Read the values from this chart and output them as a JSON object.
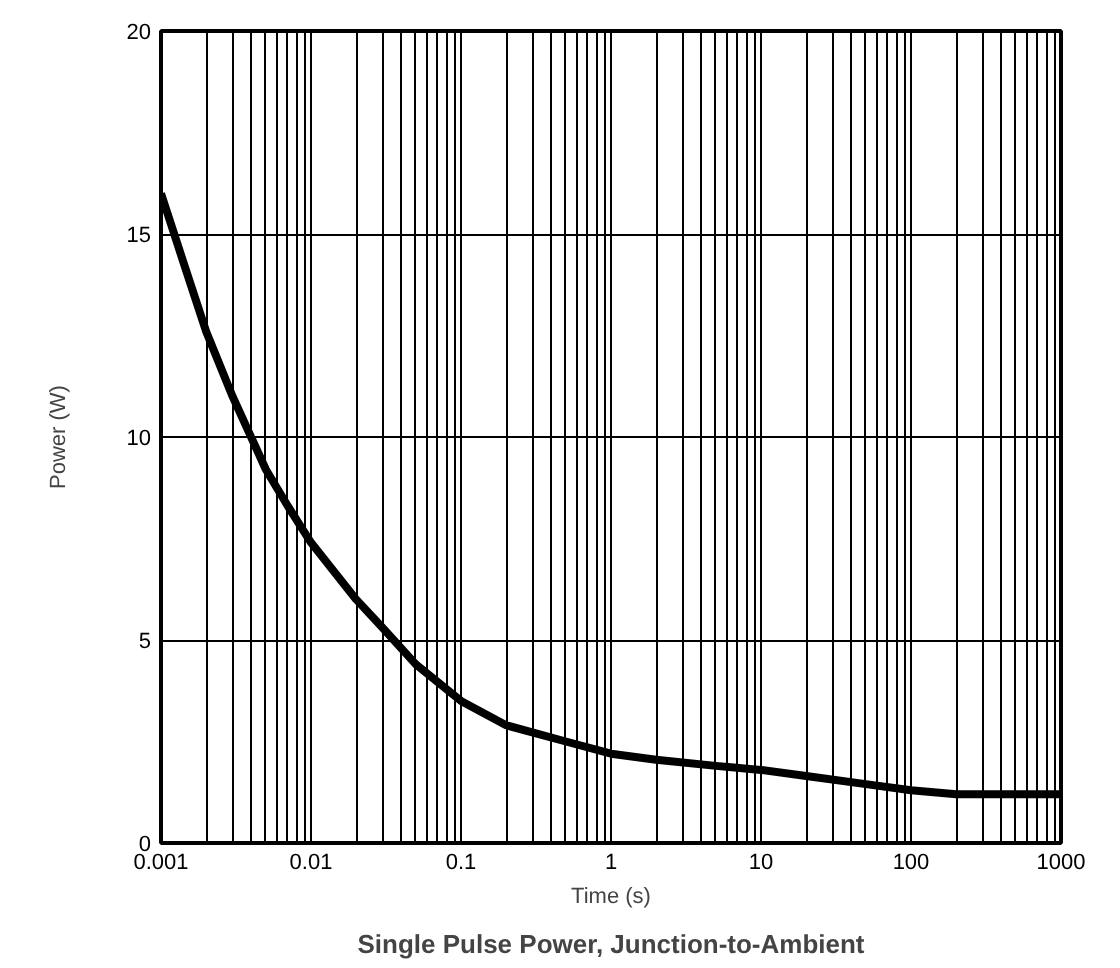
{
  "chart_data": {
    "type": "line",
    "title": "Single Pulse Power, Junction-to-Ambient",
    "xlabel": "Time (s)",
    "ylabel": "Power (W)",
    "log": "x",
    "x": [
      0.001,
      0.0015,
      0.002,
      0.003,
      0.005,
      0.007,
      0.01,
      0.02,
      0.03,
      0.05,
      0.1,
      0.2,
      0.5,
      1,
      2,
      5,
      10,
      20,
      50,
      100,
      200,
      500,
      1000
    ],
    "series": [
      {
        "color": "#000000",
        "values": [
          16,
          14,
          12.6,
          11,
          9.2,
          8.3,
          7.4,
          6,
          5.3,
          4.4,
          3.5,
          2.9,
          2.5,
          2.2,
          2.05,
          1.9,
          1.8,
          1.65,
          1.45,
          1.3,
          1.2,
          1.2,
          1.2
        ]
      }
    ],
    "xlim": [
      0.001,
      1000
    ],
    "ylim": [
      0,
      20
    ],
    "xticks": [
      {
        "value": 0.001,
        "label": "0.001"
      },
      {
        "value": 0.002,
        "label": null
      },
      {
        "value": 0.003,
        "label": null
      },
      {
        "value": 0.004,
        "label": null
      },
      {
        "value": 0.005,
        "label": null
      },
      {
        "value": 0.006,
        "label": null
      },
      {
        "value": 0.007,
        "label": null
      },
      {
        "value": 0.008,
        "label": null
      },
      {
        "value": 0.009,
        "label": null
      },
      {
        "value": 0.01,
        "label": "0.01"
      },
      {
        "value": 0.02,
        "label": null
      },
      {
        "value": 0.03,
        "label": null
      },
      {
        "value": 0.04,
        "label": null
      },
      {
        "value": 0.05,
        "label": null
      },
      {
        "value": 0.06,
        "label": null
      },
      {
        "value": 0.07,
        "label": null
      },
      {
        "value": 0.08,
        "label": null
      },
      {
        "value": 0.09,
        "label": null
      },
      {
        "value": 0.1,
        "label": "0.1"
      },
      {
        "value": 0.2,
        "label": null
      },
      {
        "value": 0.3,
        "label": null
      },
      {
        "value": 0.4,
        "label": null
      },
      {
        "value": 0.5,
        "label": null
      },
      {
        "value": 0.6,
        "label": null
      },
      {
        "value": 0.7,
        "label": null
      },
      {
        "value": 0.8,
        "label": null
      },
      {
        "value": 0.9,
        "label": null
      },
      1,
      {
        "value": 2,
        "label": null
      },
      {
        "value": 3,
        "label": null
      },
      {
        "value": 4,
        "label": null
      },
      {
        "value": 5,
        "label": null
      },
      {
        "value": 6,
        "label": null
      },
      {
        "value": 7,
        "label": null
      },
      {
        "value": 8,
        "label": null
      },
      {
        "value": 9,
        "label": null
      },
      10,
      {
        "value": 20,
        "label": null
      },
      {
        "value": 30,
        "label": null
      },
      {
        "value": 40,
        "label": null
      },
      {
        "value": 50,
        "label": null
      },
      {
        "value": 60,
        "label": null
      },
      {
        "value": 70,
        "label": null
      },
      {
        "value": 80,
        "label": null
      },
      {
        "value": 90,
        "label": null
      },
      100,
      {
        "value": 200,
        "label": null
      },
      {
        "value": 300,
        "label": null
      },
      {
        "value": 400,
        "label": null
      },
      {
        "value": 500,
        "label": null
      },
      {
        "value": 600,
        "label": null
      },
      {
        "value": 700,
        "label": null
      },
      {
        "value": 800,
        "label": null
      },
      {
        "value": 900,
        "label": null
      },
      1000
    ],
    "yticks": [
      0,
      5,
      10,
      15,
      20
    ],
    "grid": true,
    "marker": "none",
    "line_style": "solid"
  }
}
